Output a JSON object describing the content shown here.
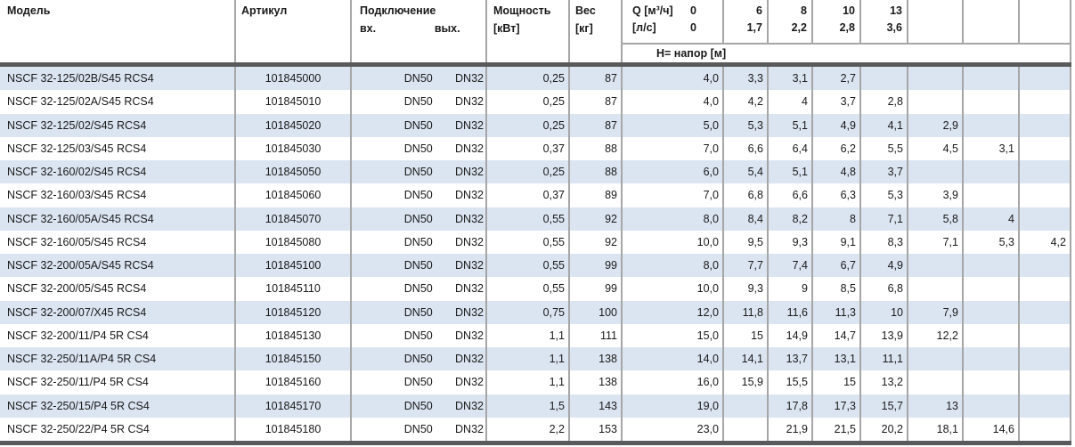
{
  "colors": {
    "stripe_blue": "#dbe5f1",
    "grid_gray": "#a6a6a6",
    "rule_dark": "#595a5c",
    "text": "#1a1a1a"
  },
  "header": {
    "model": "Модель",
    "article": "Артикул",
    "connection": "Подключение",
    "inlet": "вх.",
    "outlet": "вых.",
    "power_line1": "Мощность",
    "power_line2": "[кВт]",
    "weight_line1": "Вес",
    "weight_line2": "[кг]",
    "q_label": "Q [м³/ч]",
    "q_zero": "0",
    "ls_label": "[л/с]",
    "ls_zero": "0",
    "q_values": [
      "6",
      "8",
      "10",
      "13",
      "",
      "",
      ""
    ],
    "ls_values": [
      "1,7",
      "2,2",
      "2,8",
      "3,6",
      "",
      "",
      ""
    ],
    "head_label": "Н= напор [м]"
  },
  "rows": [
    {
      "model": "NSCF 32-125/02B/S45 RCS4",
      "article": "101845000",
      "inlet": "DN50",
      "outlet": "DN32",
      "power": "0,25",
      "weight": "87",
      "q0": "4,0",
      "h": [
        "3,3",
        "3,1",
        "2,7",
        "",
        "",
        "",
        ""
      ]
    },
    {
      "model": "NSCF 32-125/02A/S45 RCS4",
      "article": "101845010",
      "inlet": "DN50",
      "outlet": "DN32",
      "power": "0,25",
      "weight": "87",
      "q0": "4,0",
      "h": [
        "4,2",
        "4",
        "3,7",
        "2,8",
        "",
        "",
        ""
      ]
    },
    {
      "model": "NSCF 32-125/02/S45 RCS4",
      "article": "101845020",
      "inlet": "DN50",
      "outlet": "DN32",
      "power": "0,25",
      "weight": "87",
      "q0": "5,0",
      "h": [
        "5,3",
        "5,1",
        "4,9",
        "4,1",
        "2,9",
        "",
        ""
      ]
    },
    {
      "model": "NSCF 32-125/03/S45 RCS4",
      "article": "101845030",
      "inlet": "DN50",
      "outlet": "DN32",
      "power": "0,37",
      "weight": "88",
      "q0": "7,0",
      "h": [
        "6,6",
        "6,4",
        "6,2",
        "5,5",
        "4,5",
        "3,1",
        ""
      ]
    },
    {
      "model": "NSCF 32-160/02/S45 RCS4",
      "article": "101845050",
      "inlet": "DN50",
      "outlet": "DN32",
      "power": "0,25",
      "weight": "88",
      "q0": "6,0",
      "h": [
        "5,4",
        "5,1",
        "4,8",
        "3,7",
        "",
        "",
        ""
      ]
    },
    {
      "model": "NSCF 32-160/03/S45 RCS4",
      "article": "101845060",
      "inlet": "DN50",
      "outlet": "DN32",
      "power": "0,37",
      "weight": "89",
      "q0": "7,0",
      "h": [
        "6,8",
        "6,6",
        "6,3",
        "5,3",
        "3,9",
        "",
        ""
      ]
    },
    {
      "model": "NSCF 32-160/05A/S45 RCS4",
      "article": "101845070",
      "inlet": "DN50",
      "outlet": "DN32",
      "power": "0,55",
      "weight": "92",
      "q0": "8,0",
      "h": [
        "8,4",
        "8,2",
        "8",
        "7,1",
        "5,8",
        "4",
        ""
      ]
    },
    {
      "model": "NSCF 32-160/05/S45 RCS4",
      "article": "101845080",
      "inlet": "DN50",
      "outlet": "DN32",
      "power": "0,55",
      "weight": "92",
      "q0": "10,0",
      "h": [
        "9,5",
        "9,3",
        "9,1",
        "8,3",
        "7,1",
        "5,3",
        "4,2"
      ]
    },
    {
      "model": "NSCF 32-200/05A/S45 RCS4",
      "article": "101845100",
      "inlet": "DN50",
      "outlet": "DN32",
      "power": "0,55",
      "weight": "99",
      "q0": "8,0",
      "h": [
        "7,7",
        "7,4",
        "6,7",
        "4,9",
        "",
        "",
        ""
      ]
    },
    {
      "model": "NSCF 32-200/05/S45 RCS4",
      "article": "101845110",
      "inlet": "DN50",
      "outlet": "DN32",
      "power": "0,55",
      "weight": "99",
      "q0": "10,0",
      "h": [
        "9,3",
        "9",
        "8,5",
        "6,8",
        "",
        "",
        ""
      ]
    },
    {
      "model": "NSCF 32-200/07/X45 RCS4",
      "article": "101845120",
      "inlet": "DN50",
      "outlet": "DN32",
      "power": "0,75",
      "weight": "100",
      "q0": "12,0",
      "h": [
        "11,8",
        "11,6",
        "11,3",
        "10",
        "7,9",
        "",
        ""
      ]
    },
    {
      "model": "NSCF 32-200/11/P4 5R CS4",
      "article": "101845130",
      "inlet": "DN50",
      "outlet": "DN32",
      "power": "1,1",
      "weight": "111",
      "q0": "15,0",
      "h": [
        "15",
        "14,9",
        "14,7",
        "13,9",
        "12,2",
        "",
        ""
      ]
    },
    {
      "model": "NSCF 32-250/11A/P4 5R CS4",
      "article": "101845150",
      "inlet": "DN50",
      "outlet": "DN32",
      "power": "1,1",
      "weight": "138",
      "q0": "14,0",
      "h": [
        "14,1",
        "13,7",
        "13,1",
        "11,1",
        "",
        "",
        ""
      ]
    },
    {
      "model": "NSCF 32-250/11/P4 5R CS4",
      "article": "101845160",
      "inlet": "DN50",
      "outlet": "DN32",
      "power": "1,1",
      "weight": "138",
      "q0": "16,0",
      "h": [
        "15,9",
        "15,5",
        "15",
        "13,2",
        "",
        "",
        ""
      ]
    },
    {
      "model": "NSCF 32-250/15/P4 5R CS4",
      "article": "101845170",
      "inlet": "DN50",
      "outlet": "DN32",
      "power": "1,5",
      "weight": "143",
      "q0": "19,0",
      "h": [
        "",
        "17,8",
        "17,3",
        "15,7",
        "13",
        "",
        ""
      ]
    },
    {
      "model": "NSCF 32-250/22/P4 5R CS4",
      "article": "101845180",
      "inlet": "DN50",
      "outlet": "DN32",
      "power": "2,2",
      "weight": "153",
      "q0": "23,0",
      "h": [
        "",
        "21,9",
        "21,5",
        "20,2",
        "18,1",
        "14,6",
        ""
      ]
    }
  ]
}
